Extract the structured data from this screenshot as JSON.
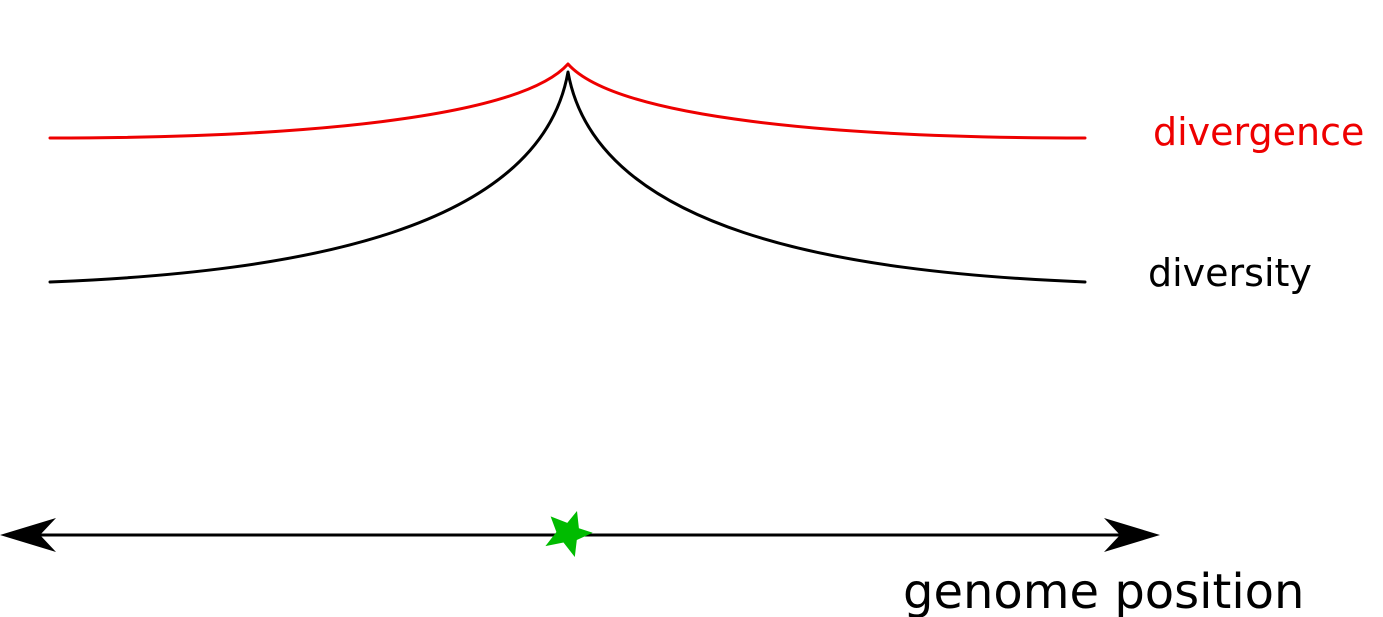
{
  "labels": {
    "divergence": "divergence",
    "diversity": "diversity",
    "axis": "genome position"
  },
  "icons": {
    "marker": "star-icon",
    "axis_arrows": "double-headed-arrow"
  },
  "colors": {
    "divergence": "#ee0000",
    "diversity": "#000000",
    "axis": "#000000",
    "star": "#00bb00",
    "background": "#ffffff"
  }
}
